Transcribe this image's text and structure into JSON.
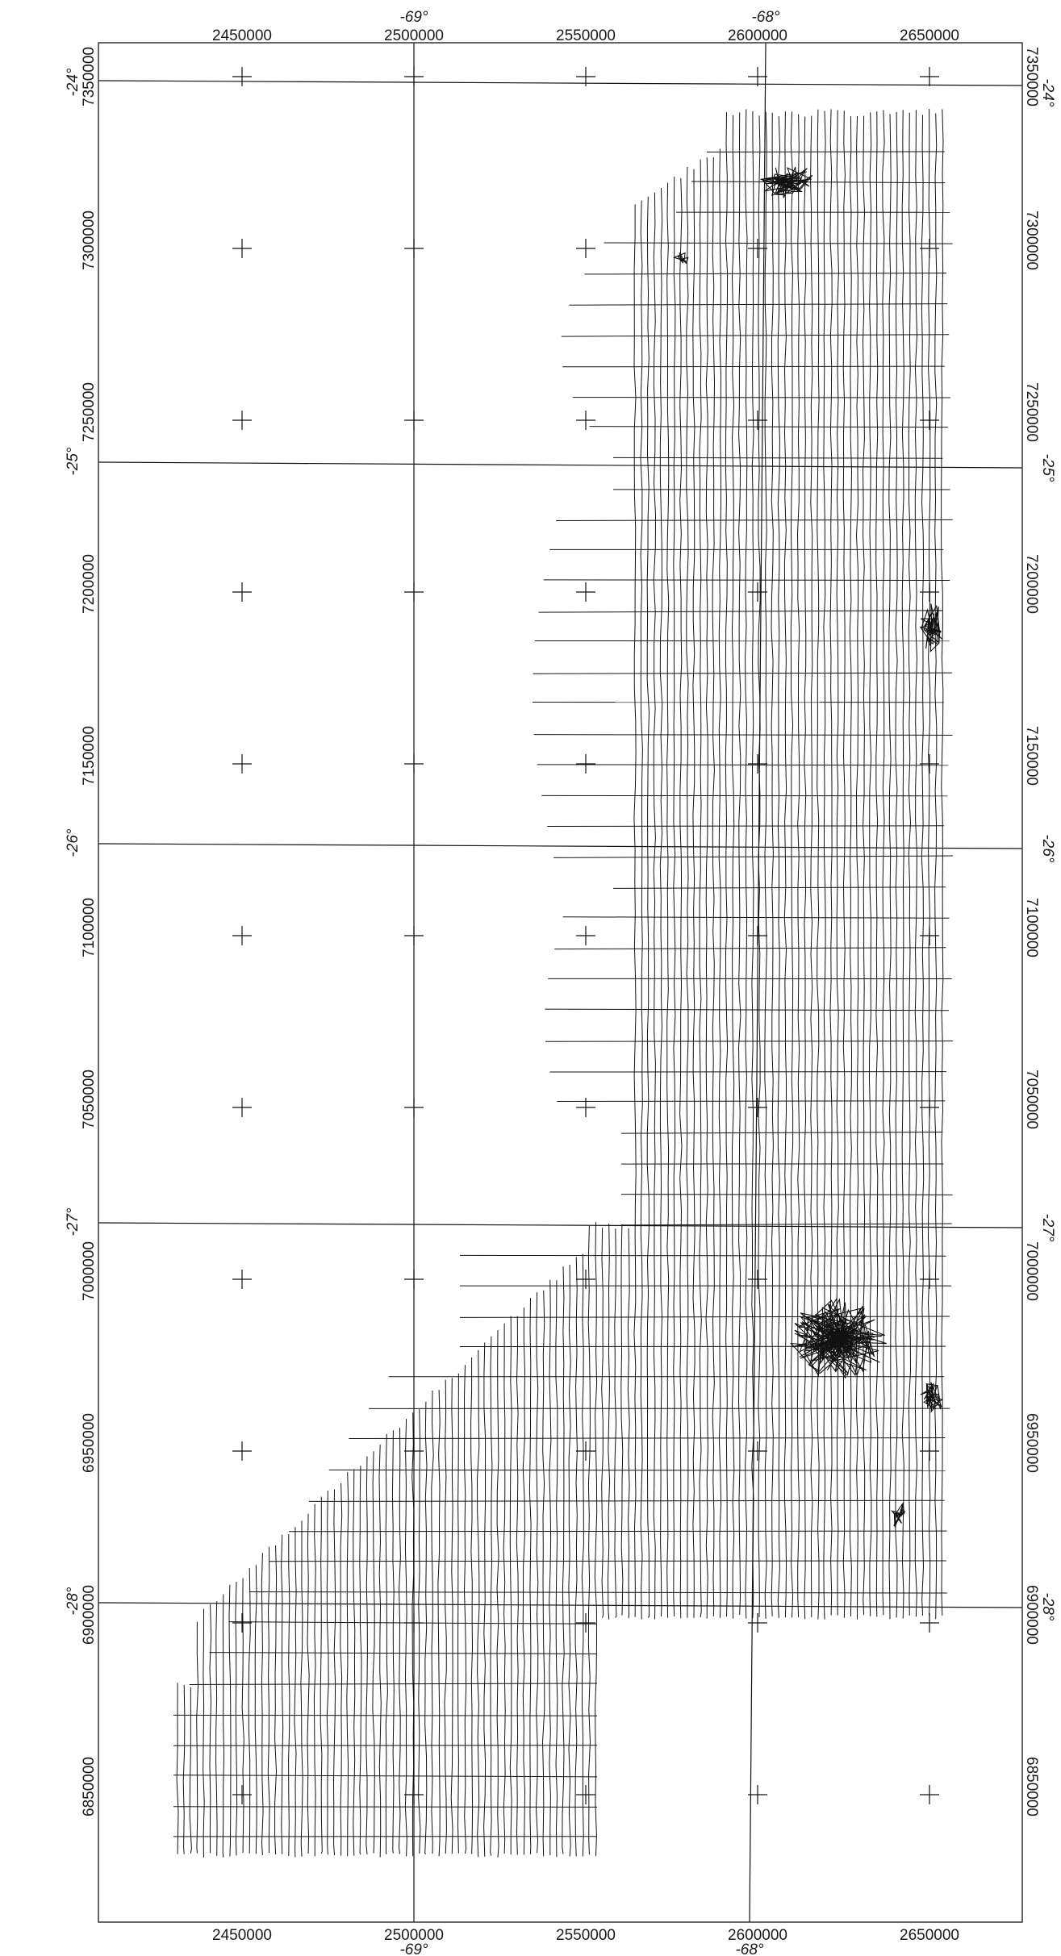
{
  "map": {
    "type": "survey-flight-line-map",
    "projected_x_ticks": [
      "2450000",
      "2500000",
      "2550000",
      "2600000",
      "2650000"
    ],
    "projected_y_ticks": [
      "7350000",
      "7300000",
      "7250000",
      "7200000",
      "7150000",
      "7100000",
      "7050000",
      "7000000",
      "6950000",
      "6900000",
      "6850000"
    ],
    "longitude_labels": [
      "-69°",
      "-68°"
    ],
    "latitude_labels": [
      "-24°",
      "-25°",
      "-26°",
      "-27°",
      "-28°"
    ],
    "x_range": [
      2408000,
      2675000
    ],
    "y_range": [
      6810000,
      7360000
    ],
    "line_color": "#111111",
    "frame_color": "#333333"
  }
}
